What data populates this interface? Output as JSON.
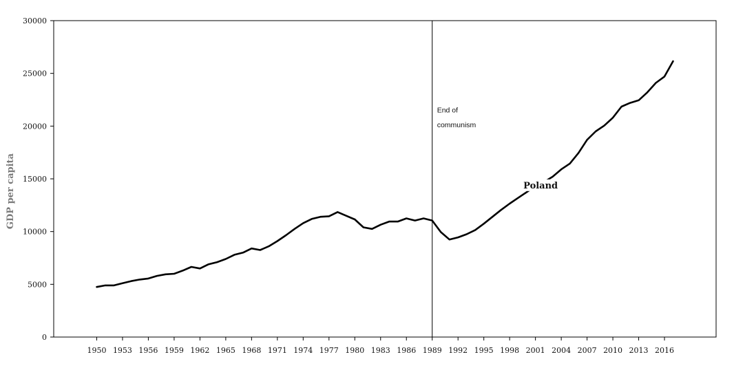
{
  "chart_data": {
    "type": "line",
    "title": "",
    "xlabel": "",
    "ylabel": "GDP per capita",
    "ylim": [
      0,
      30000
    ],
    "xlim": [
      1945,
      2022
    ],
    "yticks": [
      0,
      5000,
      10000,
      15000,
      20000,
      25000,
      30000
    ],
    "xticks": [
      1950,
      1953,
      1956,
      1959,
      1962,
      1965,
      1968,
      1971,
      1974,
      1977,
      1980,
      1983,
      1986,
      1989,
      1992,
      1995,
      1998,
      2001,
      2004,
      2007,
      2010,
      2013,
      2016
    ],
    "grid": false,
    "series": [
      {
        "name": "Poland",
        "color": "#000000",
        "x": [
          1950,
          1951,
          1952,
          1953,
          1954,
          1955,
          1956,
          1957,
          1958,
          1959,
          1960,
          1961,
          1962,
          1963,
          1964,
          1965,
          1966,
          1967,
          1968,
          1969,
          1970,
          1971,
          1972,
          1973,
          1974,
          1975,
          1976,
          1977,
          1978,
          1979,
          1980,
          1981,
          1982,
          1983,
          1984,
          1985,
          1986,
          1987,
          1988,
          1989,
          1990,
          1991,
          1992,
          1993,
          1994,
          1995,
          1996,
          1997,
          1998,
          1999,
          2000,
          2001,
          2002,
          2003,
          2004,
          2005,
          2006,
          2007,
          2008,
          2009,
          2010,
          2011,
          2012,
          2013,
          2014,
          2015,
          2016,
          2017
        ],
        "y": [
          4750,
          4900,
          4900,
          5100,
          5300,
          5450,
          5550,
          5800,
          5950,
          6000,
          6300,
          6650,
          6500,
          6900,
          7100,
          7400,
          7800,
          8000,
          8400,
          8250,
          8600,
          9100,
          9650,
          10250,
          10800,
          11200,
          11400,
          11450,
          11850,
          11500,
          11150,
          10400,
          10250,
          10650,
          10950,
          10950,
          11250,
          11050,
          11250,
          11050,
          9950,
          9250,
          9450,
          9750,
          10150,
          10750,
          11400,
          12050,
          12650,
          13200,
          13750,
          14300,
          14700,
          15200,
          15900,
          16450,
          17450,
          18700,
          19500,
          20050,
          20800,
          21850,
          22200,
          22450,
          23200,
          24100,
          24700,
          26150
        ]
      }
    ],
    "annotations": {
      "event_line_x": 1989,
      "event_label_line1": "End of",
      "event_label_line2": "communism",
      "series_label": "Poland"
    }
  }
}
